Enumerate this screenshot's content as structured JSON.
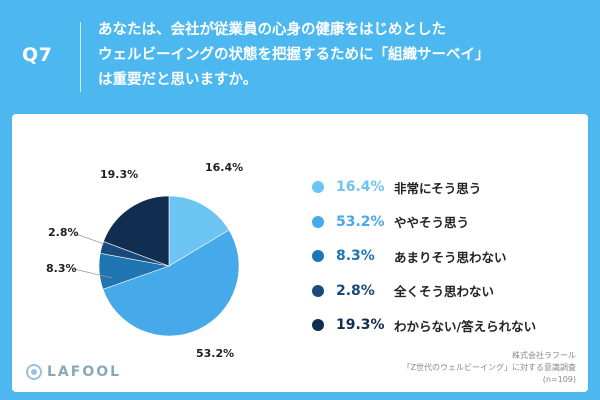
{
  "header": {
    "q_label": "Q7",
    "question_lines": [
      "あなたは、会社が従業員の心身の健康をはじめとした",
      "ウェルビーイングの状態を把握するために「組織サーベイ」",
      "は重要だと思いますか。"
    ]
  },
  "chart_data": {
    "type": "pie",
    "title": "",
    "legend_position": "right",
    "start_angle_deg": 0,
    "direction": "clockwise",
    "slices": [
      {
        "label": "非常にそう思う",
        "value": 16.4,
        "value_text": "16.4%",
        "color": "#6cc4f2"
      },
      {
        "label": "ややそう思う",
        "value": 53.2,
        "value_text": "53.2%",
        "color": "#45a9ea"
      },
      {
        "label": "あまりそう思わない",
        "value": 8.3,
        "value_text": "8.3%",
        "color": "#1f75b2"
      },
      {
        "label": "全くそう思わない",
        "value": 2.8,
        "value_text": "2.8%",
        "color": "#1a4a7c"
      },
      {
        "label": "わからない/答えられない",
        "value": 19.3,
        "value_text": "19.3%",
        "color": "#112d4f"
      }
    ]
  },
  "logo": {
    "text": "LAFOOL"
  },
  "source": {
    "lines": [
      "株式会社ラフール",
      "「Z世代のウェルビーイング」に対する意識調査",
      "(n=109)"
    ]
  }
}
